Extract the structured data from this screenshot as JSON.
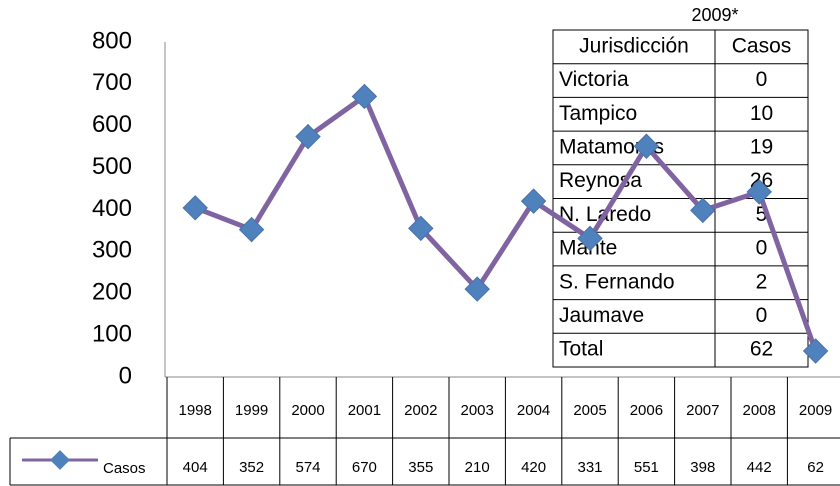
{
  "chart_data": {
    "type": "line",
    "categories": [
      "1998",
      "1999",
      "2000",
      "2001",
      "2002",
      "2003",
      "2004",
      "2005",
      "2006",
      "2007",
      "2008",
      "2009"
    ],
    "series": [
      {
        "name": "Casos",
        "color": "#8064a2",
        "marker_color": "#4f81bd",
        "values": [
          404,
          352,
          574,
          670,
          355,
          210,
          420,
          331,
          551,
          398,
          442,
          62
        ]
      }
    ],
    "ylim": [
      0,
      800
    ],
    "yticks": [
      0,
      100,
      200,
      300,
      400,
      500,
      600,
      700,
      800
    ],
    "grid": false
  },
  "table": {
    "title": "2009*",
    "header": [
      "Jurisdicción",
      "Casos"
    ],
    "rows": [
      [
        "Victoria",
        0
      ],
      [
        "Tampico",
        10
      ],
      [
        "Matamoros",
        19
      ],
      [
        "Reynosa",
        26
      ],
      [
        "N. Laredo",
        5
      ],
      [
        "Mante",
        0
      ],
      [
        "S. Fernando",
        2
      ],
      [
        "Jaumave",
        0
      ],
      [
        "Total",
        62
      ]
    ]
  }
}
